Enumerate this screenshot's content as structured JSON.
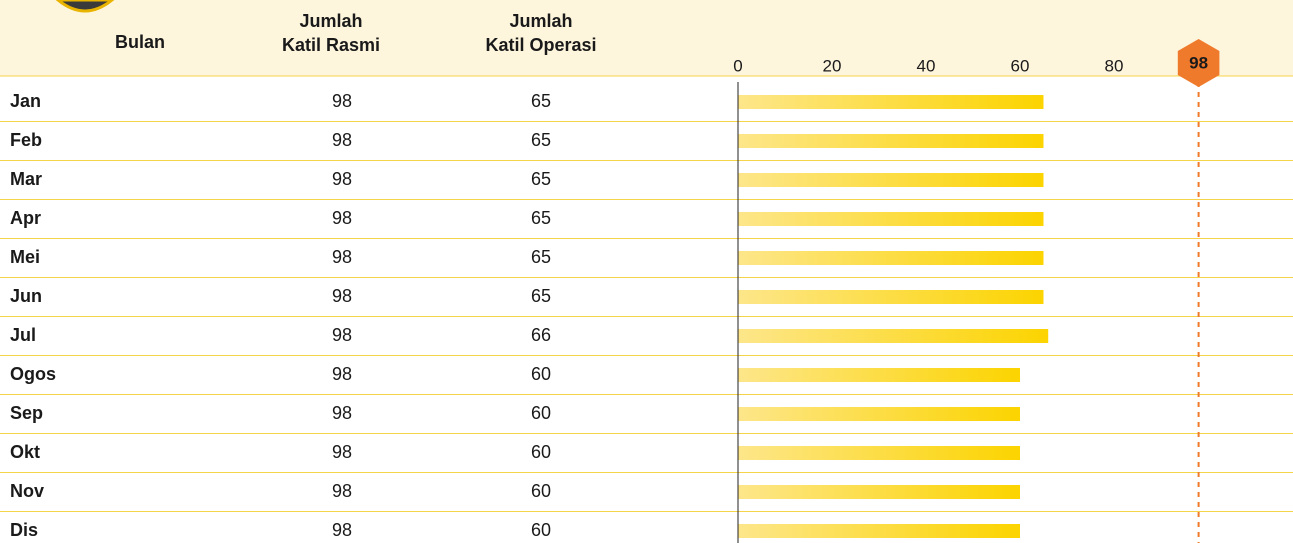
{
  "table": {
    "headers": [
      "Bulan",
      [
        "Jumlah",
        "Katil Rasmi"
      ],
      [
        "Jumlah",
        "Katil Operasi"
      ]
    ],
    "rows": [
      [
        "Jan",
        98,
        65
      ],
      [
        "Feb",
        98,
        65
      ],
      [
        "Mar",
        98,
        65
      ],
      [
        "Apr",
        98,
        65
      ],
      [
        "Mei",
        98,
        65
      ],
      [
        "Jun",
        98,
        65
      ],
      [
        "Jul",
        98,
        66
      ],
      [
        "Ogos",
        98,
        60
      ],
      [
        "Sep",
        98,
        60
      ],
      [
        "Okt",
        98,
        60
      ],
      [
        "Nov",
        98,
        60
      ],
      [
        "Dis",
        98,
        60
      ]
    ]
  },
  "chart_data": {
    "type": "bar",
    "xlim": [
      0,
      100
    ],
    "xticks": [
      0,
      20,
      40,
      60,
      80
    ],
    "reference": 98,
    "bar_color": "#fcd400",
    "reference_color": "#f07a2b"
  }
}
